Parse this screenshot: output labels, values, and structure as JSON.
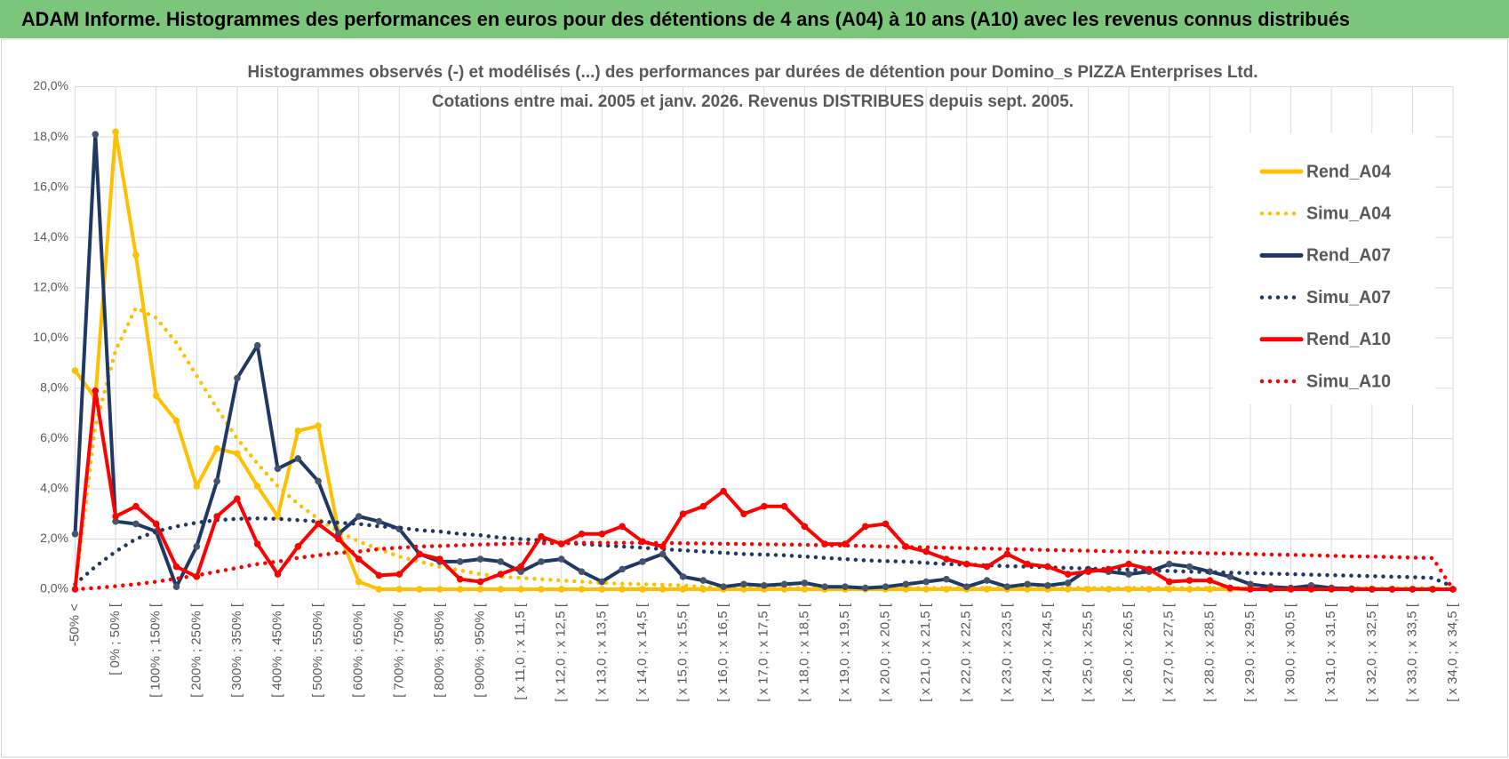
{
  "header": {
    "title": "ADAM Informe. Histogrammes des performances en euros pour des détentions de 4 ans (A04) à 10 ans (A10) avec les revenus connus distribués"
  },
  "chart_data": {
    "type": "line",
    "title": "Histogrammes observés (-) et modélisés (...) des performances par durées de détention pour Domino_s PIZZA Enterprises Ltd.",
    "subtitle": "Cotations entre mai. 2005 et janv. 2026.  Revenus DISTRIBUES depuis sept. 2005.",
    "categories": [
      "-50% <",
      null,
      "[ 0% ; 50% [",
      null,
      "[ 100% ; 150% [",
      null,
      "[ 200% ; 250% [",
      null,
      "[ 300% ; 350% [",
      null,
      "[ 400% ; 450% [",
      null,
      "[ 500% ; 550% [",
      null,
      "[ 600% ; 650% [",
      null,
      "[ 700% ; 750% [",
      null,
      "[ 800% ; 850% [",
      null,
      "[ 900% ; 950% [",
      null,
      "[ x 11,0 ; x 11,5 [",
      null,
      "[ x 12,0 ; x 12,5 [",
      null,
      "[ x 13,0 ; x 13,5 [",
      null,
      "[ x 14,0 ; x 14,5 [",
      null,
      "[ x 15,0 ; x 15,5 [",
      null,
      "[ x 16,0 ; x 16,5 [",
      null,
      "[ x 17,0 ; x 17,5 [",
      null,
      "[ x 18,0 ; x 18,5 [",
      null,
      "[ x 19,0 ; x 19,5 [",
      null,
      "[ x 20,0 ; x 20,5 [",
      null,
      "[ x 21,0 ; x 21,5 [",
      null,
      "[ x 22,0 ; x 22,5 [",
      null,
      "[ x 23,0 ; x 23,5 [",
      null,
      "[ x 24,0 ; x 24,5 [",
      null,
      "[ x 25,0 ; x 25,5 [",
      null,
      "[ x 26,0 ; x 26,5 [",
      null,
      "[ x 27,0 ; x 27,5 [",
      null,
      "[ x 28,0 ; x 28,5 [",
      null,
      "[ x 29,0 ; x 29,5 [",
      null,
      "[ x 30,0 ; x 30,5 [",
      null,
      "[ x 31,0 ; x 31,5 [",
      null,
      "[ x 32,0 ; x 32,5 [",
      null,
      "[ x 33,0 ; x 33,5 [",
      null,
      "[ x 34,0 ; x 34,5 ["
    ],
    "series": [
      {
        "name": "Rend_A04",
        "color": "#FFC000",
        "style": "solid",
        "values": [
          8.7,
          7.6,
          18.2,
          13.3,
          7.7,
          6.7,
          4.1,
          5.6,
          5.4,
          4.1,
          2.9,
          6.3,
          6.5,
          2.3,
          0.3,
          0,
          0,
          0,
          0,
          0,
          0,
          0,
          0,
          0,
          0,
          0,
          0,
          0,
          0,
          0,
          0,
          0,
          0,
          0,
          0,
          0,
          0,
          0,
          0,
          0,
          0,
          0,
          0,
          0,
          0,
          0,
          0,
          0,
          0,
          0,
          0,
          0,
          0,
          0,
          0,
          0,
          0,
          0,
          0,
          0,
          0,
          0,
          0,
          0,
          0,
          0,
          0,
          0,
          0
        ]
      },
      {
        "name": "Simu_A04",
        "color": "#FFC000",
        "style": "dotted",
        "values": [
          0,
          6.5,
          9.5,
          11.2,
          10.8,
          9.8,
          8.5,
          7.2,
          6.0,
          5.0,
          4.1,
          3.4,
          2.8,
          2.3,
          1.9,
          1.6,
          1.3,
          1.1,
          0.9,
          0.75,
          0.6,
          0.5,
          0.45,
          0.4,
          0.35,
          0.3,
          0.25,
          0.22,
          0.2,
          0.18,
          0.15,
          0.1,
          0.05,
          0.05,
          0.05,
          0.05,
          0.05,
          0.05,
          0.05,
          0.05,
          0.05,
          0.05,
          0.05,
          0.05,
          0.05,
          0.05,
          0.05,
          0.05,
          0.05,
          0.05,
          0.05,
          0.05,
          0.05,
          0.05,
          0.05,
          0.05,
          0.05,
          0.05,
          0.05,
          0.05,
          0.05,
          0.05,
          0.05,
          0.05,
          0.05,
          0.05,
          0.05,
          0.05,
          0
        ]
      },
      {
        "name": "Rend_A07",
        "color": "#1F3864",
        "style": "solid",
        "values": [
          2.2,
          18.1,
          2.7,
          2.6,
          2.3,
          0.1,
          1.7,
          4.3,
          8.4,
          9.7,
          4.8,
          5.2,
          4.3,
          2.2,
          2.9,
          2.7,
          2.4,
          1.4,
          1.1,
          1.1,
          1.2,
          1.1,
          0.7,
          1.1,
          1.2,
          0.7,
          0.3,
          0.8,
          1.1,
          1.4,
          0.5,
          0.35,
          0.1,
          0.2,
          0.15,
          0.2,
          0.25,
          0.1,
          0.1,
          0.05,
          0.1,
          0.2,
          0.3,
          0.4,
          0.1,
          0.35,
          0.1,
          0.2,
          0.15,
          0.25,
          0.8,
          0.7,
          0.6,
          0.7,
          1.0,
          0.9,
          0.7,
          0.5,
          0.2,
          0.1,
          0.05,
          0.15,
          0.05,
          0.02,
          0,
          0,
          0,
          0,
          0
        ]
      },
      {
        "name": "Simu_A07",
        "color": "#1F3864",
        "style": "dotted",
        "values": [
          0.2,
          0.9,
          1.5,
          2.0,
          2.3,
          2.5,
          2.65,
          2.75,
          2.8,
          2.82,
          2.8,
          2.75,
          2.7,
          2.65,
          2.6,
          2.5,
          2.45,
          2.35,
          2.3,
          2.2,
          2.15,
          2.05,
          2.0,
          1.95,
          1.85,
          1.8,
          1.75,
          1.7,
          1.65,
          1.6,
          1.55,
          1.5,
          1.45,
          1.4,
          1.38,
          1.35,
          1.3,
          1.25,
          1.2,
          1.15,
          1.12,
          1.1,
          1.05,
          1.0,
          0.98,
          0.95,
          0.92,
          0.9,
          0.87,
          0.85,
          0.82,
          0.8,
          0.78,
          0.75,
          0.73,
          0.7,
          0.68,
          0.66,
          0.64,
          0.62,
          0.6,
          0.58,
          0.56,
          0.54,
          0.52,
          0.5,
          0.48,
          0.45,
          0.1
        ]
      },
      {
        "name": "Rend_A10",
        "color": "#FF0000",
        "style": "solid",
        "values": [
          0,
          7.9,
          2.9,
          3.3,
          2.6,
          0.9,
          0.5,
          2.9,
          3.6,
          1.8,
          0.6,
          1.7,
          2.6,
          2.0,
          1.2,
          0.55,
          0.6,
          1.4,
          1.2,
          0.4,
          0.3,
          0.6,
          0.9,
          2.1,
          1.8,
          2.2,
          2.2,
          2.5,
          1.9,
          1.7,
          3.0,
          3.3,
          3.9,
          3.0,
          3.3,
          3.3,
          2.5,
          1.8,
          1.8,
          2.5,
          2.6,
          1.7,
          1.5,
          1.2,
          1.0,
          0.9,
          1.4,
          1.0,
          0.9,
          0.6,
          0.7,
          0.8,
          1.0,
          0.8,
          0.3,
          0.35,
          0.35,
          0.05,
          0,
          0,
          0,
          0,
          0,
          0,
          0,
          0,
          0,
          0,
          0
        ]
      },
      {
        "name": "Simu_A10",
        "color": "#FF0000",
        "style": "dotted",
        "values": [
          0,
          0.05,
          0.12,
          0.2,
          0.3,
          0.42,
          0.55,
          0.7,
          0.85,
          1.0,
          1.1,
          1.25,
          1.35,
          1.45,
          1.5,
          1.6,
          1.65,
          1.7,
          1.72,
          1.75,
          1.78,
          1.8,
          1.82,
          1.83,
          1.84,
          1.85,
          1.85,
          1.85,
          1.85,
          1.84,
          1.83,
          1.82,
          1.81,
          1.8,
          1.79,
          1.78,
          1.77,
          1.75,
          1.74,
          1.72,
          1.7,
          1.68,
          1.67,
          1.65,
          1.63,
          1.62,
          1.6,
          1.58,
          1.56,
          1.55,
          1.53,
          1.51,
          1.5,
          1.48,
          1.46,
          1.45,
          1.43,
          1.42,
          1.4,
          1.38,
          1.37,
          1.35,
          1.33,
          1.31,
          1.3,
          1.28,
          1.26,
          1.24,
          0
        ]
      }
    ],
    "ylim": [
      0,
      20
    ],
    "yticks": [
      {
        "value": 0,
        "label": "0,0%"
      },
      {
        "value": 2,
        "label": "2,0%"
      },
      {
        "value": 4,
        "label": "4,0%"
      },
      {
        "value": 6,
        "label": "6,0%"
      },
      {
        "value": 8,
        "label": "8,0%"
      },
      {
        "value": 10,
        "label": "10,0%"
      },
      {
        "value": 12,
        "label": "12,0%"
      },
      {
        "value": 14,
        "label": "14,0%"
      },
      {
        "value": 16,
        "label": "16,0%"
      },
      {
        "value": 18,
        "label": "18,0%"
      },
      {
        "value": 20,
        "label": "20,0%"
      }
    ],
    "grid": true,
    "legend": "right"
  }
}
